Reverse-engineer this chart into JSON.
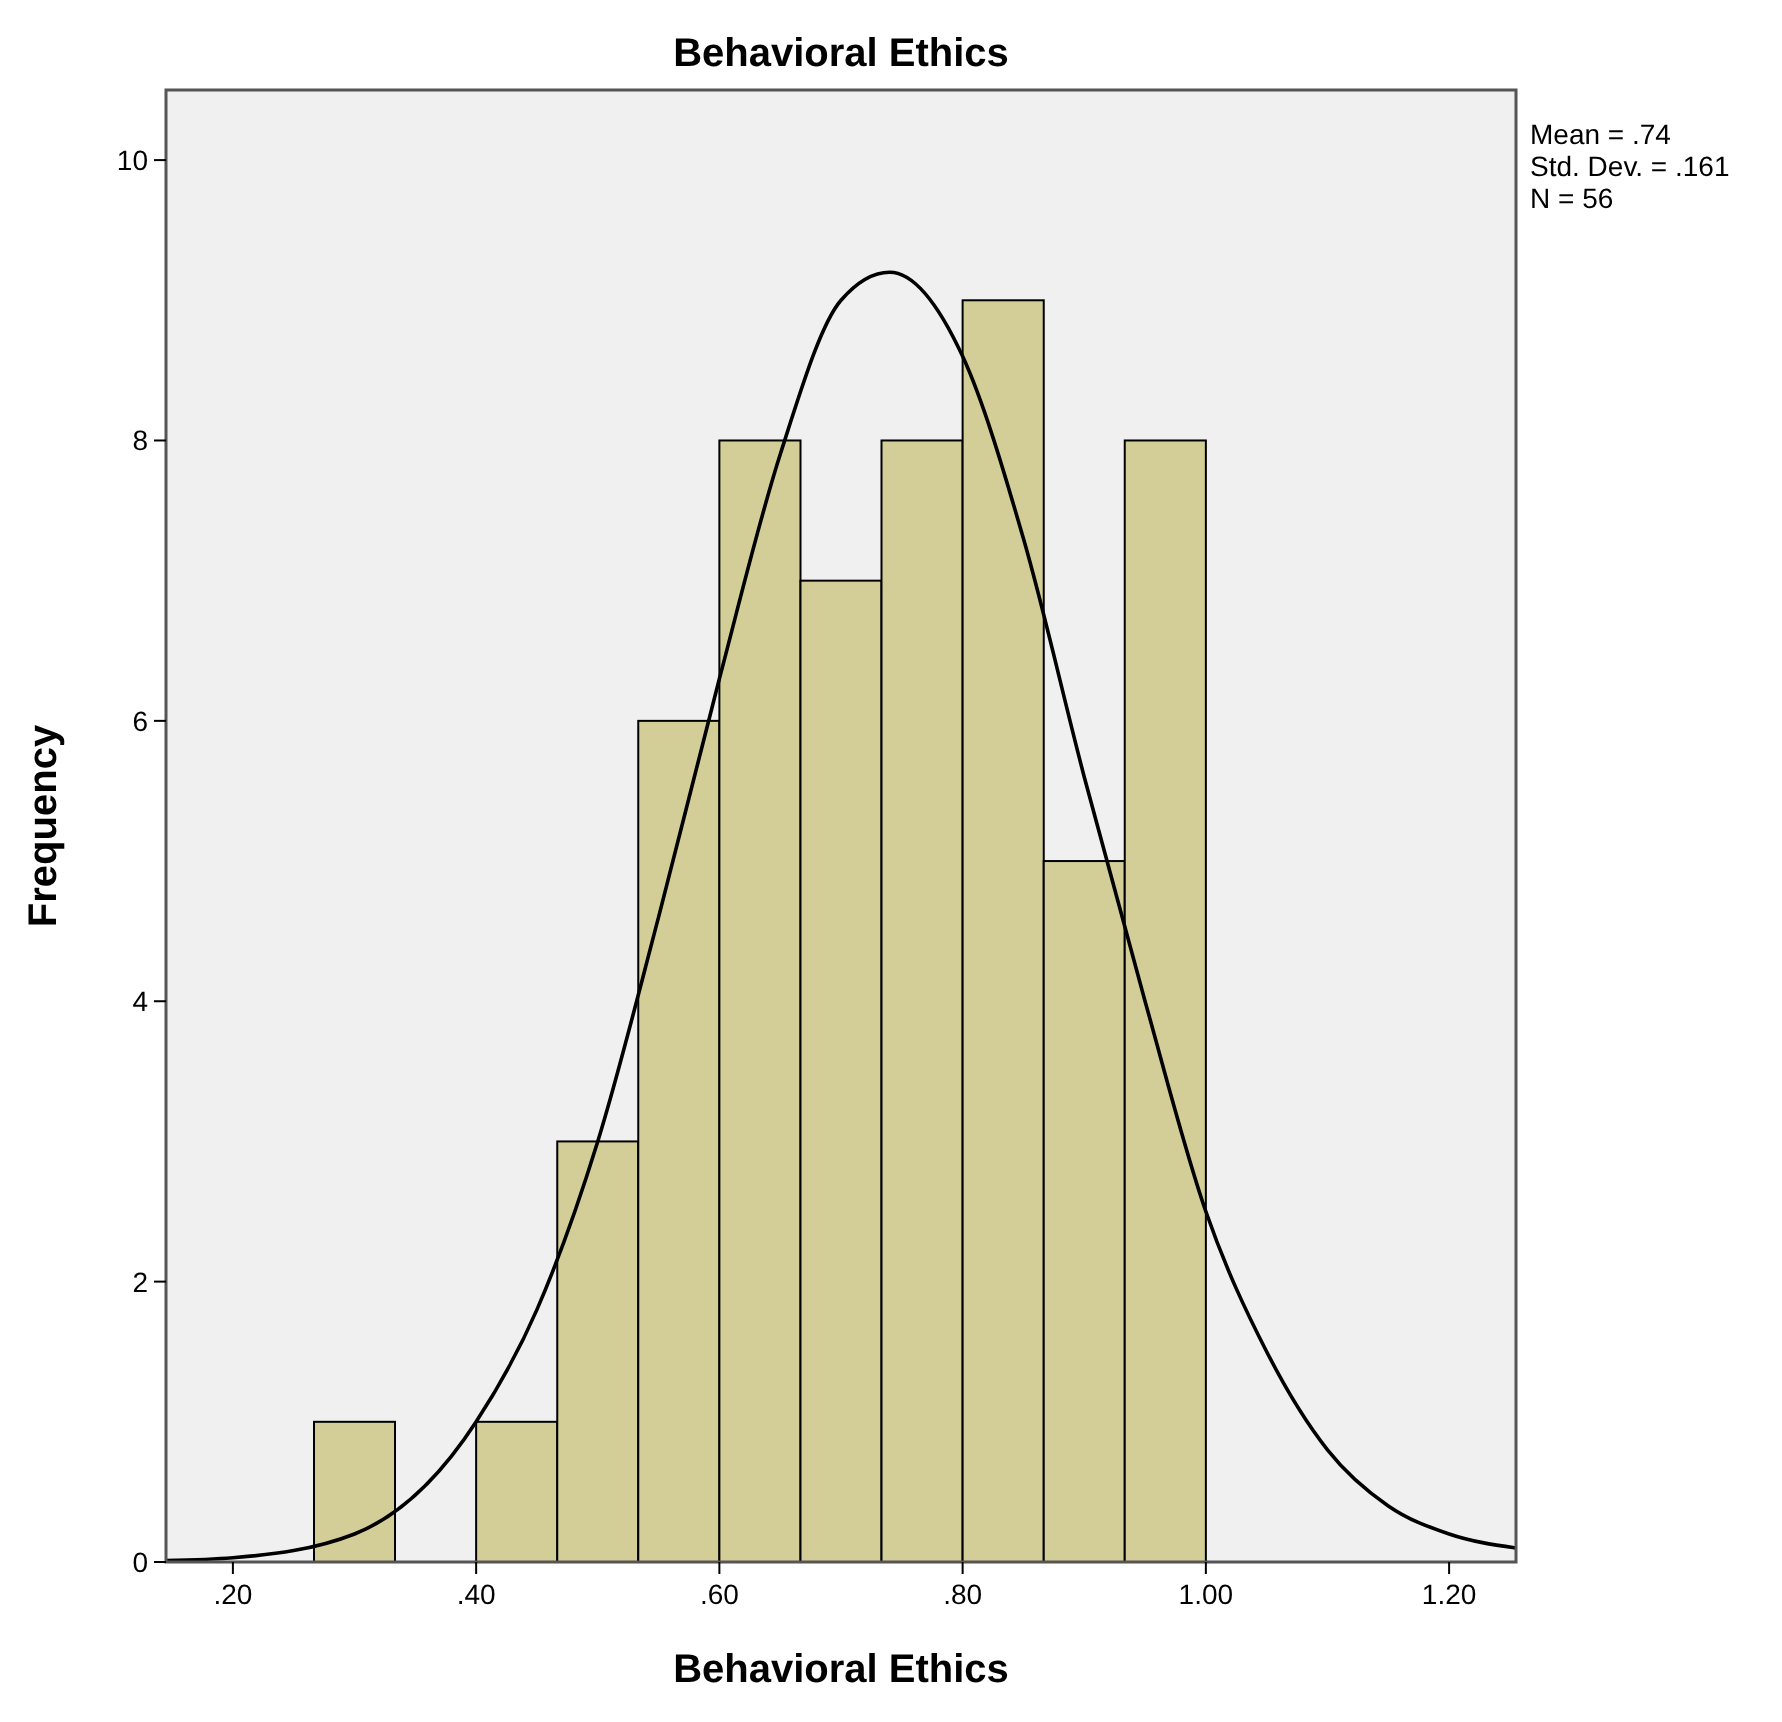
{
  "chart_data": {
    "type": "histogram",
    "title": "Behavioral Ethics",
    "xlabel": "Behavioral Ethics",
    "ylabel": "Frequency",
    "bins": [
      0.2667,
      0.3333,
      0.4,
      0.4667,
      0.5333,
      0.6,
      0.6667,
      0.7333,
      0.8,
      0.8667,
      0.9333,
      1.0
    ],
    "values": [
      1,
      0,
      1,
      3,
      6,
      8,
      7,
      8,
      9,
      5,
      8
    ],
    "color": "#d3ce97",
    "series": [
      {
        "type": "line",
        "color": "#000000",
        "x": [
          0.145,
          0.2,
          0.3,
          0.4,
          0.45,
          0.5,
          0.55,
          0.6,
          0.65,
          0.7,
          0.74,
          0.8,
          0.85,
          0.9,
          0.95,
          1.0,
          1.05,
          1.1,
          1.15,
          1.2,
          1.255
        ],
        "values": [
          0.01,
          0.03,
          0.2,
          1.0,
          1.8,
          3.0,
          4.6,
          6.3,
          7.9,
          9.0,
          9.2,
          8.6,
          7.3,
          5.6,
          4.0,
          2.5,
          1.5,
          0.8,
          0.4,
          0.2,
          0.1
        ]
      }
    ],
    "xlim": [
      0.145,
      1.255
    ],
    "xticks": [
      {
        "value": 0.2,
        "label": ".20"
      },
      {
        "value": 0.4,
        "label": ".40"
      },
      {
        "value": 0.6,
        "label": ".60"
      },
      {
        "value": 0.8,
        "label": ".80"
      },
      {
        "value": 1.0,
        "label": "1.00"
      },
      {
        "value": 1.2,
        "label": "1.20"
      }
    ],
    "ylim": [
      0,
      10.5
    ],
    "yticks": [
      0,
      2,
      4,
      6,
      8,
      10
    ],
    "annotations": [
      "Mean = .74",
      "Std. Dev. = .161",
      "N = 56"
    ],
    "grid": false
  }
}
